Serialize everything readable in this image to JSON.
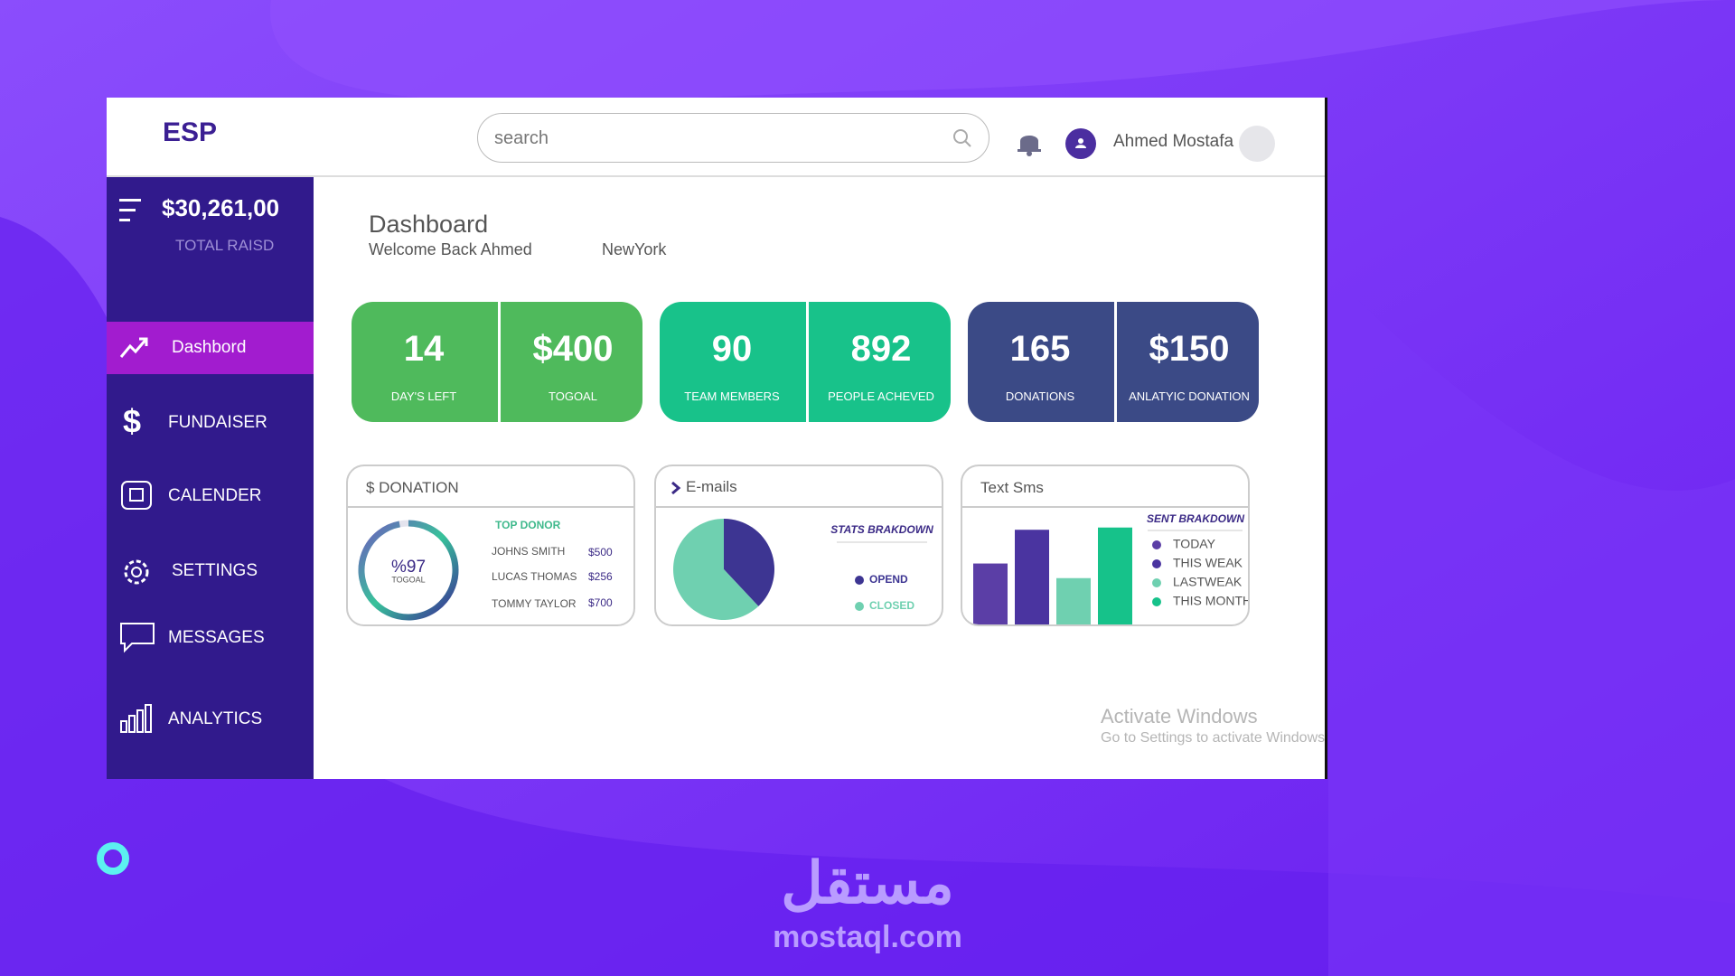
{
  "window": {
    "logo": "ESP",
    "search_placeholder": "search",
    "user_name": "Ahmed Mostafa"
  },
  "sidebar": {
    "total_amount": "$30,261,00",
    "total_label": "TOTAL RAISD",
    "menu": [
      "Dashbord",
      "FUNDAISER",
      "CALENDER",
      "SETTINGS",
      "MESSAGES",
      "ANALYTICS"
    ]
  },
  "page": {
    "title": "Dashboard",
    "welcome": "Welcome Back Ahmed",
    "location": "NewYork"
  },
  "stats": [
    {
      "value": 14,
      "label": "DAY'S LEFT"
    },
    {
      "value": "$400",
      "label": "TOGOAL"
    },
    {
      "value": 90,
      "label": "TEAM MEMBERS"
    },
    {
      "value": 892,
      "label": "PEOPLE ACHEVED"
    },
    {
      "value": 165,
      "label": "DONATIONS"
    },
    {
      "value": "$150",
      "label": "ANLATYIC DONATION"
    }
  ],
  "donation_panel": {
    "title": "$ DONATION",
    "progress": {
      "value": 97,
      "value_label": "%97",
      "caption": "TOGOAL"
    },
    "top_donor_title": "TOP DONOR",
    "donors": [
      {
        "name": "JOHNS SMITH",
        "amount": "$500"
      },
      {
        "name": "LUCAS THOMAS",
        "amount": "$256"
      },
      {
        "name": "TOMMY TAYLOR",
        "amount": "$700"
      }
    ]
  },
  "emails_panel": {
    "title": "E-mails",
    "chart_data": {
      "type": "pie",
      "title": "STATS  BRAKDOWN",
      "categories": [
        "OPEND",
        "CLOSED"
      ],
      "values": [
        38,
        62
      ],
      "colors": [
        "#3d3592",
        "#6fd0b0"
      ]
    }
  },
  "sms_panel": {
    "title": "Text Sms",
    "chart_data": {
      "type": "bar",
      "title": "SENT BRAKDOWN",
      "categories": [
        "TODAY",
        "THIS WEAK",
        "LASTWEAK",
        "THIS MONTH"
      ],
      "values": [
        55,
        85,
        42,
        87
      ],
      "colors": [
        "#5b3ea6",
        "#4a34a0",
        "#6fd0b0",
        "#16c28a"
      ],
      "ylim": [
        0,
        90
      ]
    }
  },
  "watermark": {
    "title": "Activate Windows",
    "subtitle": "Go to Settings to activate Windows"
  },
  "brand": {
    "arabic": "مستقل",
    "url": "mostaql.com"
  }
}
